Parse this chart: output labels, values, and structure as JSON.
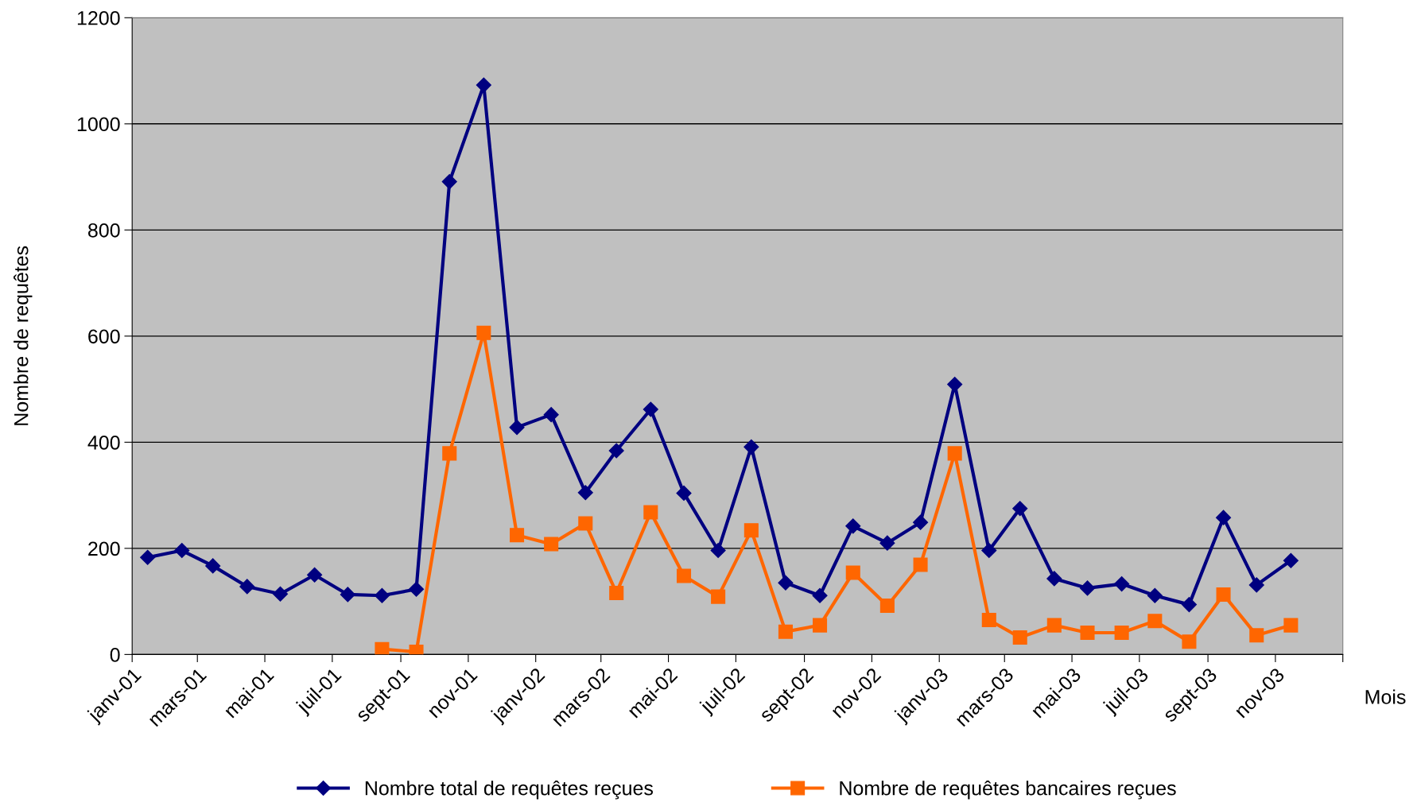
{
  "chart_data": {
    "type": "line",
    "xlabel": "Mois",
    "ylabel": "Nombre de requêtes",
    "x": [
      "2001-01-15",
      "2001-02-15",
      "2001-03-15",
      "2001-04-15",
      "2001-05-15",
      "2001-06-15",
      "2001-07-15",
      "2001-08-15",
      "2001-09-15",
      "2001-10-15",
      "2001-11-15",
      "2001-12-15",
      "2002-01-15",
      "2002-02-15",
      "2002-03-15",
      "2002-04-15",
      "2002-05-15",
      "2002-06-15",
      "2002-07-15",
      "2002-08-15",
      "2002-09-15",
      "2002-10-15",
      "2002-11-15",
      "2002-12-15",
      "2003-01-15",
      "2003-02-15",
      "2003-03-15",
      "2003-04-15",
      "2003-05-15",
      "2003-06-15",
      "2003-07-15",
      "2003-08-15",
      "2003-09-15",
      "2003-10-15",
      "2003-11-15"
    ],
    "series": [
      {
        "name": "Nombre total de requêtes reçues",
        "color": "#000080",
        "marker": "diamond",
        "values": [
          183,
          196,
          167,
          128,
          114,
          150,
          113,
          111,
          123,
          891,
          1073,
          428,
          452,
          305,
          384,
          462,
          304,
          196,
          391,
          135,
          111,
          242,
          210,
          249,
          509,
          196,
          275,
          143,
          125,
          133,
          111,
          94,
          258,
          131,
          177
        ]
      },
      {
        "name": "Nombre de requêtes bancaires reçues",
        "color": "#ff6600",
        "marker": "square",
        "values": [
          null,
          null,
          null,
          null,
          null,
          null,
          null,
          10,
          5,
          379,
          606,
          225,
          208,
          247,
          116,
          268,
          148,
          109,
          234,
          43,
          55,
          154,
          92,
          169,
          379,
          65,
          32,
          55,
          41,
          41,
          63,
          24,
          113,
          36,
          55
        ]
      }
    ],
    "xlim": [
      "2001-01",
      "2004-01"
    ],
    "xticks": [
      {
        "value": "2001-01",
        "label": "janv-01"
      },
      {
        "value": "2001-03",
        "label": "mars-01"
      },
      {
        "value": "2001-05",
        "label": "mai-01"
      },
      {
        "value": "2001-07",
        "label": "juil-01"
      },
      {
        "value": "2001-09",
        "label": "sept-01"
      },
      {
        "value": "2001-11",
        "label": "nov-01"
      },
      {
        "value": "2002-01",
        "label": "janv-02"
      },
      {
        "value": "2002-03",
        "label": "mars-02"
      },
      {
        "value": "2002-05",
        "label": "mai-02"
      },
      {
        "value": "2002-07",
        "label": "juil-02"
      },
      {
        "value": "2002-09",
        "label": "sept-02"
      },
      {
        "value": "2002-11",
        "label": "nov-02"
      },
      {
        "value": "2003-01",
        "label": "janv-03"
      },
      {
        "value": "2003-03",
        "label": "mars-03"
      },
      {
        "value": "2003-05",
        "label": "mai-03"
      },
      {
        "value": "2003-07",
        "label": "juil-03"
      },
      {
        "value": "2003-09",
        "label": "sept-03"
      },
      {
        "value": "2003-11",
        "label": "nov-03"
      },
      {
        "value": "2004-01",
        "label": null
      }
    ],
    "ylim": [
      0,
      1200
    ],
    "yticks": [
      0,
      200,
      400,
      600,
      800,
      1000,
      1200
    ],
    "grid": "y",
    "legend": "bottom",
    "line_style": "solid"
  }
}
